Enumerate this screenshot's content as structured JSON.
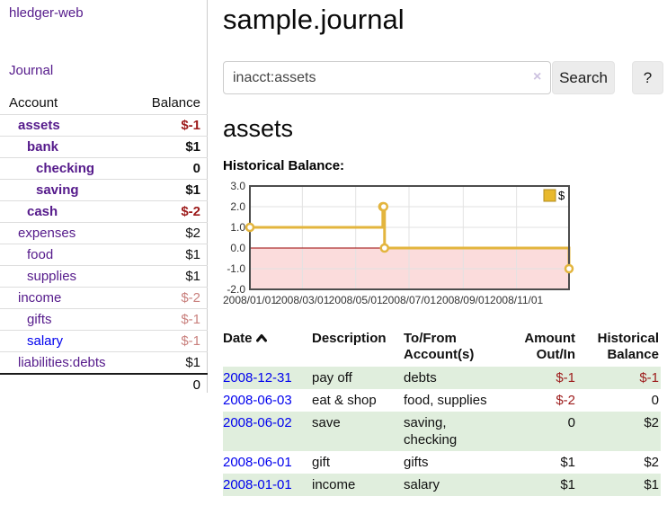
{
  "colors": {
    "link_purple": "#551a8b",
    "link_blue": "#0000ee",
    "negative_strong": "#9d1b1b",
    "negative_soft": "#c9807d",
    "row_green": "#e0eedd",
    "chart_line_gold": "#e3b53e",
    "chart_negative_fill": "#fbdcdc",
    "chart_zero_line": "#990000"
  },
  "sidebar": {
    "app_title": "hledger-web",
    "journal_link": "Journal",
    "accounts_header": {
      "account": "Account",
      "balance": "Balance"
    },
    "accounts": [
      {
        "name": "assets",
        "level": 1,
        "bold": true,
        "balance": "$-1"
      },
      {
        "name": "bank",
        "level": 2,
        "bold": true,
        "balance": "$1"
      },
      {
        "name": "checking",
        "level": 3,
        "bold": true,
        "balance": "0"
      },
      {
        "name": "saving",
        "level": 3,
        "bold": true,
        "balance": "$1"
      },
      {
        "name": "cash",
        "level": 2,
        "bold": true,
        "balance": "$-2"
      },
      {
        "name": "expenses",
        "level": 1,
        "bold": false,
        "balance": "$2"
      },
      {
        "name": "food",
        "level": 2,
        "bold": false,
        "balance": "$1"
      },
      {
        "name": "supplies",
        "level": 2,
        "bold": false,
        "balance": "$1"
      },
      {
        "name": "income",
        "level": 1,
        "bold": false,
        "balance": "$-2"
      },
      {
        "name": "gifts",
        "level": 2,
        "bold": false,
        "balance": "$-1"
      },
      {
        "name": "salary",
        "level": 2,
        "bold": false,
        "balance": "$-1",
        "unvisited": true
      },
      {
        "name": "liabilities:debts",
        "level": 1,
        "bold": false,
        "balance": "$1"
      }
    ],
    "total": "0"
  },
  "header": {
    "title": "sample.journal"
  },
  "search": {
    "value": "inacct:assets",
    "clear_icon": "×",
    "button_label": "Search",
    "help_label": "?"
  },
  "main": {
    "account_heading": "assets",
    "chart_title": "Historical Balance:"
  },
  "chart_data": {
    "type": "line",
    "step": true,
    "title": "Historical Balance:",
    "legend": "$",
    "legend_position": "top-right",
    "x": [
      "2008-01-01",
      "2008-06-01",
      "2008-06-02",
      "2008-06-03",
      "2008-12-31"
    ],
    "values": [
      1,
      2,
      2,
      0,
      -1
    ],
    "x_range": [
      "2008-01-01",
      "2008-12-31"
    ],
    "x_ticks": [
      "2008/01/01",
      "2008/03/01",
      "2008/05/01",
      "2008/07/01",
      "2008/09/01",
      "2008/11/01"
    ],
    "y_ticks": [
      "3.0",
      "2.0",
      "1.0",
      "0.0",
      "-1.0",
      "-2.0"
    ],
    "ylim": [
      -2,
      3
    ],
    "grid": true
  },
  "register": {
    "headers": [
      {
        "line1": "Date",
        "sort": "asc"
      },
      {
        "line1": "Description"
      },
      {
        "line1": "To/From",
        "line2": "Account(s)"
      },
      {
        "line1": "Amount",
        "line2": "Out/In",
        "align": "right"
      },
      {
        "line1": "Historical",
        "line2": "Balance",
        "align": "right"
      }
    ],
    "rows": [
      {
        "date": "2008-12-31",
        "description": "pay off",
        "accounts": "debts",
        "amount": "$-1",
        "balance": "$-1"
      },
      {
        "date": "2008-06-03",
        "description": "eat & shop",
        "accounts": "food, supplies",
        "amount": "$-2",
        "balance": "0"
      },
      {
        "date": "2008-06-02",
        "description": "save",
        "accounts": "saving,\nchecking",
        "amount": "0",
        "balance": "$2"
      },
      {
        "date": "2008-06-01",
        "description": "gift",
        "accounts": "gifts",
        "amount": "$1",
        "balance": "$2"
      },
      {
        "date": "2008-01-01",
        "description": "income",
        "accounts": "salary",
        "amount": "$1",
        "balance": "$1"
      }
    ]
  }
}
